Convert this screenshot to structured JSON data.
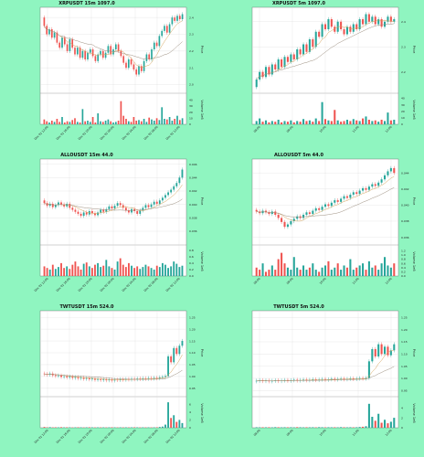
{
  "colors": {
    "background": "#8ff5c0",
    "panel_bg": "#ffffff",
    "grid": "#d9d9d9",
    "up": "#26a69a",
    "down": "#ef5350",
    "ma1": "#d4a35a",
    "ma2": "#9b8d7e"
  },
  "chart_data": [
    {
      "type": "candlestick",
      "title": "XRPUSDT 15m 1097.0",
      "ylabel": "Price",
      "volume_label": "Volume  1e6",
      "x_ticks": [
        "Dec 01 12:00",
        "Dec 01 16:00",
        "Dec 01 20:00",
        "Dec 02 00:00",
        "Dec 02 04:00",
        "Dec 02 08:00",
        "Dec 02 12:00"
      ],
      "y_ticks": [
        "2.4",
        "2.3",
        "2.2",
        "2.1",
        "2.0"
      ],
      "ylim": [
        1.97,
        2.45
      ],
      "vol_ticks": [
        "40",
        "30",
        "20",
        "10",
        "0"
      ],
      "vol_max": 45,
      "close": [
        2.35,
        2.3,
        2.33,
        2.28,
        2.31,
        2.25,
        2.22,
        2.28,
        2.24,
        2.2,
        2.27,
        2.22,
        2.18,
        2.22,
        2.16,
        2.2,
        2.15,
        2.19,
        2.21,
        2.17,
        2.14,
        2.18,
        2.2,
        2.16,
        2.19,
        2.23,
        2.18,
        2.21,
        2.24,
        2.2,
        2.17,
        2.13,
        2.1,
        2.15,
        2.12,
        2.09,
        2.06,
        2.11,
        2.08,
        2.14,
        2.18,
        2.15,
        2.21,
        2.25,
        2.23,
        2.29,
        2.32,
        2.35,
        2.31,
        2.36,
        2.4,
        2.38,
        2.41,
        2.39,
        2.42
      ],
      "volume": [
        8,
        5,
        3,
        6,
        4,
        9,
        4,
        12,
        3,
        5,
        4,
        7,
        10,
        4,
        3,
        25,
        5,
        6,
        4,
        12,
        3,
        18,
        5,
        4,
        6,
        8,
        5,
        3,
        4,
        6,
        38,
        14,
        9,
        5,
        4,
        12,
        6,
        7,
        5,
        9,
        4,
        11,
        8,
        6,
        10,
        7,
        28,
        9,
        8,
        12,
        6,
        9,
        14,
        7,
        10
      ]
    },
    {
      "type": "candlestick",
      "title": "XRPUSDT 5m 1097.0",
      "ylabel": "Price",
      "volume_label": "Volume  1e6",
      "x_ticks": [
        "08:00",
        "09:00",
        "10:00",
        "11:00",
        "12:00"
      ],
      "y_ticks": [
        "2.4",
        "2.3",
        "2.2"
      ],
      "ylim": [
        2.13,
        2.45
      ],
      "vol_ticks": [
        "40",
        "30",
        "20",
        "10",
        "0"
      ],
      "vol_max": 42,
      "close": [
        2.17,
        2.2,
        2.18,
        2.22,
        2.19,
        2.23,
        2.21,
        2.25,
        2.22,
        2.26,
        2.24,
        2.27,
        2.25,
        2.29,
        2.27,
        2.31,
        2.28,
        2.33,
        2.3,
        2.36,
        2.34,
        2.39,
        2.37,
        2.41,
        2.38,
        2.36,
        2.4,
        2.37,
        2.35,
        2.38,
        2.36,
        2.39,
        2.37,
        2.41,
        2.39,
        2.43,
        2.4,
        2.42,
        2.39,
        2.41,
        2.38,
        2.4,
        2.42,
        2.4,
        2.41
      ],
      "volume": [
        5,
        9,
        4,
        6,
        3,
        5,
        4,
        7,
        3,
        5,
        4,
        6,
        3,
        5,
        4,
        8,
        5,
        6,
        4,
        9,
        5,
        34,
        8,
        6,
        5,
        22,
        6,
        4,
        5,
        7,
        5,
        8,
        6,
        5,
        9,
        12,
        7,
        5,
        6,
        4,
        7,
        5,
        18,
        6,
        7
      ]
    },
    {
      "type": "candlestick",
      "title": "ALLOUSDT 15m 44.0",
      "ylabel": "Price",
      "volume_label": "Volume  1e6",
      "x_ticks": [
        "Dec 01 12:00",
        "Dec 01 16:00",
        "Dec 01 20:00",
        "Dec 02 00:00",
        "Dec 02 04:00",
        "Dec 02 08:00",
        "Dec 02 12:00"
      ],
      "y_ticks": [
        "0.046",
        "0.044",
        "0.042",
        "0.040",
        "0.038",
        "0.036"
      ],
      "ylim": [
        0.0345,
        0.0465
      ],
      "vol_ticks": [
        "0.8",
        "0.6",
        "0.4",
        "0.2",
        "0.0"
      ],
      "vol_max": 0.85,
      "close": [
        0.0402,
        0.0398,
        0.0401,
        0.0396,
        0.0399,
        0.0403,
        0.04,
        0.0397,
        0.0401,
        0.0395,
        0.0392,
        0.0389,
        0.0386,
        0.0383,
        0.0388,
        0.0385,
        0.039,
        0.0387,
        0.0384,
        0.0388,
        0.0392,
        0.0389,
        0.0393,
        0.0397,
        0.0394,
        0.0398,
        0.0402,
        0.0399,
        0.0395,
        0.0391,
        0.0388,
        0.0393,
        0.039,
        0.0386,
        0.0391,
        0.0395,
        0.0399,
        0.0396,
        0.04,
        0.0404,
        0.0401,
        0.0406,
        0.041,
        0.0414,
        0.0418,
        0.0422,
        0.0427,
        0.0432,
        0.044,
        0.0452
      ],
      "volume": [
        0.3,
        0.25,
        0.2,
        0.35,
        0.22,
        0.28,
        0.4,
        0.25,
        0.3,
        0.22,
        0.35,
        0.45,
        0.3,
        0.2,
        0.38,
        0.42,
        0.3,
        0.25,
        0.35,
        0.4,
        0.28,
        0.32,
        0.5,
        0.3,
        0.25,
        0.2,
        0.45,
        0.55,
        0.35,
        0.28,
        0.4,
        0.32,
        0.25,
        0.3,
        0.22,
        0.28,
        0.35,
        0.3,
        0.25,
        0.2,
        0.32,
        0.28,
        0.4,
        0.35,
        0.25,
        0.3,
        0.45,
        0.38,
        0.28,
        0.32
      ]
    },
    {
      "type": "candlestick",
      "title": "ALLOUSDT 5m 44.0",
      "ylabel": "Price",
      "volume_label": "Volume  1e6",
      "x_ticks": [
        "08:00",
        "09:00",
        "10:00",
        "11:00",
        "12:00"
      ],
      "y_ticks": [
        "0.044",
        "0.042",
        "0.040",
        "0.038",
        "0.036"
      ],
      "ylim": [
        0.0355,
        0.0455
      ],
      "vol_ticks": [
        "1.2",
        "1.0",
        "0.8",
        "0.6",
        "0.4",
        "0.2",
        "0.0"
      ],
      "vol_max": 1.3,
      "close": [
        0.0392,
        0.039,
        0.0393,
        0.0391,
        0.0389,
        0.0392,
        0.0388,
        0.0384,
        0.0379,
        0.0373,
        0.0376,
        0.038,
        0.0383,
        0.0386,
        0.0384,
        0.0388,
        0.0391,
        0.0389,
        0.0393,
        0.0396,
        0.0394,
        0.0398,
        0.0401,
        0.0399,
        0.0403,
        0.0406,
        0.0404,
        0.0408,
        0.0411,
        0.0409,
        0.0413,
        0.0416,
        0.0414,
        0.0418,
        0.0421,
        0.0419,
        0.0423,
        0.0426,
        0.0424,
        0.0428,
        0.0432,
        0.0437,
        0.0442,
        0.0446,
        0.044
      ],
      "volume": [
        0.4,
        0.3,
        0.6,
        0.2,
        0.3,
        0.5,
        0.3,
        0.8,
        1.1,
        0.6,
        0.4,
        0.3,
        0.9,
        0.4,
        0.3,
        0.5,
        0.3,
        0.4,
        0.6,
        0.3,
        0.2,
        0.4,
        0.5,
        0.7,
        0.3,
        0.4,
        0.6,
        0.3,
        0.5,
        0.4,
        0.8,
        0.3,
        0.4,
        0.5,
        0.6,
        0.3,
        0.7,
        0.4,
        0.5,
        0.3,
        0.6,
        0.9,
        0.5,
        0.4,
        0.6
      ]
    },
    {
      "type": "candlestick",
      "title": "TWTUSDT 15m 524.0",
      "ylabel": "Price",
      "volume_label": "Volume  1e6",
      "x_ticks": [
        "Dec 01 12:00",
        "Dec 01 16:00",
        "Dec 01 20:00",
        "Dec 02 00:00",
        "Dec 02 04:00",
        "Dec 02 08:00",
        "Dec 02 12:00"
      ],
      "y_ticks": [
        "1.25",
        "1.20",
        "1.15",
        "1.10",
        "1.05",
        "1.00",
        "0.95"
      ],
      "ylim": [
        0.93,
        1.27
      ],
      "vol_ticks": [
        "6",
        "4",
        "2",
        "0"
      ],
      "vol_max": 7,
      "close": [
        1.01,
        1.008,
        1.012,
        1.005,
        1.002,
        1.004,
        0.998,
        1.0,
        0.996,
        0.999,
        0.994,
        0.997,
        0.992,
        0.995,
        0.99,
        0.993,
        0.988,
        0.991,
        0.986,
        0.989,
        0.985,
        0.988,
        0.984,
        0.987,
        0.983,
        0.986,
        0.985,
        0.988,
        0.986,
        0.989,
        0.987,
        0.99,
        0.988,
        0.991,
        0.989,
        0.992,
        0.99,
        0.993,
        0.991,
        0.994,
        0.992,
        0.996,
        0.998,
        1.002,
        1.085,
        1.06,
        1.12,
        1.095,
        1.13,
        1.15
      ],
      "volume": [
        0.2,
        0.1,
        0.15,
        0.1,
        0.12,
        0.1,
        0.15,
        0.1,
        0.12,
        0.1,
        0.08,
        0.1,
        0.12,
        0.1,
        0.08,
        0.1,
        0.12,
        0.1,
        0.08,
        0.1,
        0.09,
        0.1,
        0.08,
        0.1,
        0.12,
        0.1,
        0.08,
        0.1,
        0.09,
        0.1,
        0.08,
        0.1,
        0.12,
        0.1,
        0.08,
        0.1,
        0.09,
        0.1,
        0.08,
        0.1,
        0.12,
        0.2,
        0.3,
        0.8,
        6.5,
        2.5,
        3.2,
        1.5,
        2.0,
        1.2
      ]
    },
    {
      "type": "candlestick",
      "title": "TWTUSDT 5m 524.0",
      "ylabel": "Price",
      "volume_label": "Volume  1e6",
      "x_ticks": [
        "08:00",
        "09:00",
        "10:00",
        "11:00",
        "12:00"
      ],
      "y_ticks": [
        "1.25",
        "1.20",
        "1.15",
        "1.10",
        "1.05",
        "1.00",
        "0.95"
      ],
      "ylim": [
        0.94,
        1.27
      ],
      "vol_ticks": [
        "4",
        "2",
        "0"
      ],
      "vol_max": 5.5,
      "close": [
        0.99,
        0.992,
        0.989,
        0.991,
        0.988,
        0.99,
        0.992,
        0.989,
        0.991,
        0.993,
        0.99,
        0.992,
        0.994,
        0.991,
        0.993,
        0.995,
        0.992,
        0.994,
        0.996,
        0.993,
        0.995,
        0.997,
        0.994,
        0.996,
        0.998,
        0.995,
        0.997,
        0.999,
        0.996,
        0.998,
        1.0,
        0.997,
        0.999,
        1.001,
        0.999,
        1.002,
        1.07,
        1.12,
        1.09,
        1.14,
        1.1,
        1.13,
        1.095,
        1.115,
        1.14
      ],
      "volume": [
        0.1,
        0.08,
        0.1,
        0.09,
        0.1,
        0.08,
        0.12,
        0.1,
        0.08,
        0.1,
        0.09,
        0.1,
        0.08,
        0.12,
        0.1,
        0.08,
        0.1,
        0.09,
        0.1,
        0.08,
        0.12,
        0.1,
        0.08,
        0.1,
        0.09,
        0.1,
        0.08,
        0.12,
        0.1,
        0.08,
        0.1,
        0.09,
        0.1,
        0.15,
        0.2,
        0.3,
        4.8,
        2.2,
        1.4,
        2.8,
        1.0,
        1.6,
        0.9,
        1.2,
        2.0
      ]
    }
  ]
}
